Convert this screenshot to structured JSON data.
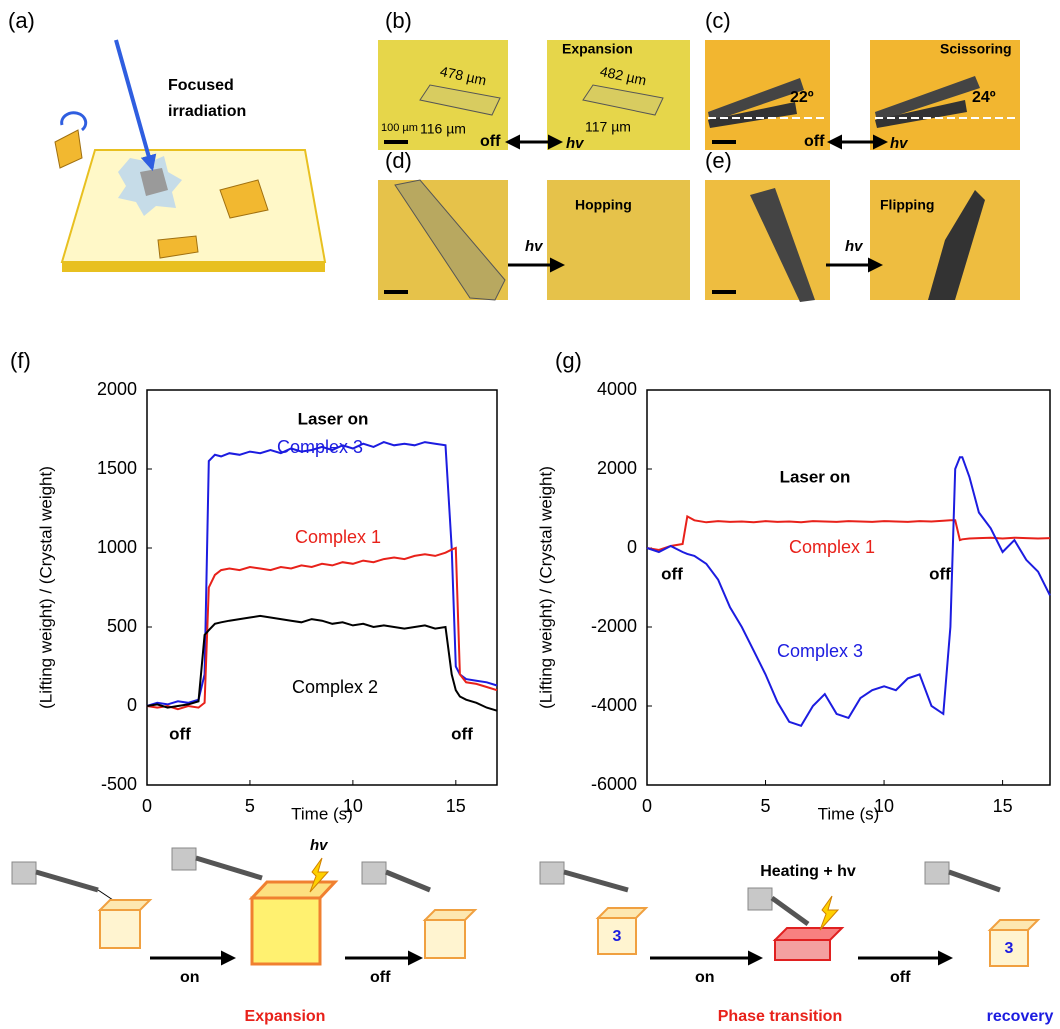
{
  "panels": {
    "a": {
      "label": "(a)",
      "caption_lines": [
        "Focused",
        "irradiation"
      ]
    },
    "b": {
      "label": "(b)",
      "length_off": "478 µm",
      "width_off": "116 µm",
      "scale_bar": "100 µm",
      "title": "Expansion",
      "length_on": "482 µm",
      "width_on": "117 µm",
      "off": "off",
      "hv": "hv"
    },
    "c": {
      "label": "(c)",
      "angle_off": "22º",
      "title": "Scissoring",
      "angle_on": "24º",
      "off": "off",
      "hv": "hv"
    },
    "d": {
      "label": "(d)",
      "title": "Hopping",
      "hv": "hv"
    },
    "e": {
      "label": "(e)",
      "title": "Flipping",
      "hv": "hv"
    }
  },
  "chart_data": [
    {
      "type": "line",
      "panel_label": "(f)",
      "x_label": "Time (s)",
      "y_label": "(Lifting weight) / (Crystal weight)",
      "xlim": [
        0,
        17
      ],
      "ylim": [
        -500,
        2000
      ],
      "xticks": [
        0,
        5,
        10,
        15
      ],
      "yticks": [
        -500,
        0,
        500,
        1000,
        1500,
        2000
      ],
      "grid": false,
      "annotations": [
        "Laser on",
        "off",
        "off"
      ],
      "x": [
        0,
        0.5,
        1,
        1.5,
        2,
        2.5,
        2.8,
        3,
        3.3,
        3.6,
        4,
        4.5,
        5,
        5.5,
        6,
        6.5,
        7,
        7.5,
        8,
        8.5,
        9,
        9.5,
        10,
        10.5,
        11,
        11.5,
        12,
        12.5,
        13,
        13.5,
        14,
        14.5,
        14.8,
        15,
        15.2,
        15.5,
        16,
        16.5,
        17
      ],
      "series": [
        {
          "name": "Complex 3",
          "color": "#1c1ce0",
          "values": [
            0,
            20,
            10,
            30,
            20,
            40,
            200,
            1550,
            1590,
            1580,
            1600,
            1590,
            1610,
            1600,
            1620,
            1600,
            1630,
            1610,
            1620,
            1640,
            1620,
            1650,
            1630,
            1660,
            1640,
            1670,
            1650,
            1660,
            1650,
            1670,
            1660,
            1650,
            1000,
            250,
            200,
            170,
            160,
            150,
            130
          ]
        },
        {
          "name": "Complex 1",
          "color": "#e8211a",
          "values": [
            0,
            -10,
            0,
            -20,
            0,
            -10,
            20,
            750,
            830,
            860,
            870,
            860,
            880,
            870,
            860,
            880,
            870,
            890,
            880,
            900,
            890,
            910,
            900,
            920,
            910,
            930,
            940,
            930,
            950,
            960,
            950,
            970,
            990,
            1000,
            200,
            150,
            140,
            120,
            100
          ]
        },
        {
          "name": "Complex 2",
          "color": "#000000",
          "values": [
            0,
            10,
            -10,
            0,
            10,
            30,
            450,
            480,
            520,
            530,
            540,
            550,
            560,
            570,
            560,
            550,
            540,
            530,
            550,
            540,
            520,
            530,
            510,
            520,
            500,
            510,
            500,
            490,
            500,
            510,
            490,
            500,
            200,
            100,
            60,
            40,
            20,
            -10,
            -30
          ]
        }
      ]
    },
    {
      "type": "line",
      "panel_label": "(g)",
      "x_label": "Time (s)",
      "y_label": "(Lifting weight) / (Crystal weight)",
      "xlim": [
        0,
        17
      ],
      "ylim": [
        -6000,
        4000
      ],
      "xticks": [
        0,
        5,
        10,
        15
      ],
      "yticks": [
        -6000,
        -4000,
        -2000,
        0,
        2000,
        4000
      ],
      "grid": false,
      "annotations": [
        "Laser on",
        "off",
        "off"
      ],
      "x": [
        0,
        0.5,
        1,
        1.5,
        1.7,
        2,
        2.5,
        3,
        3.5,
        4,
        4.5,
        5,
        5.5,
        6,
        6.5,
        7,
        7.5,
        8,
        8.5,
        9,
        9.5,
        10,
        10.5,
        11,
        11.5,
        12,
        12.5,
        12.8,
        13,
        13.2,
        13.3,
        13.6,
        14,
        14.5,
        15,
        15.5,
        16,
        16.5,
        17
      ],
      "series": [
        {
          "name": "Complex 1",
          "color": "#e8211a",
          "values": [
            0,
            -50,
            50,
            100,
            800,
            700,
            650,
            680,
            660,
            670,
            650,
            680,
            660,
            670,
            650,
            680,
            670,
            660,
            680,
            670,
            660,
            680,
            670,
            660,
            680,
            670,
            690,
            700,
            700,
            200,
            220,
            240,
            250,
            260,
            240,
            260,
            250,
            240,
            250
          ]
        },
        {
          "name": "Complex 3",
          "color": "#1c1ce0",
          "values": [
            0,
            -100,
            50,
            -100,
            -150,
            -200,
            -400,
            -800,
            -1500,
            -2000,
            -2600,
            -3200,
            -3900,
            -4400,
            -4500,
            -4000,
            -3700,
            -4200,
            -4300,
            -3800,
            -3600,
            -3500,
            -3600,
            -3300,
            -3200,
            -4000,
            -4200,
            -2000,
            2000,
            2300,
            2300,
            1800,
            900,
            500,
            -100,
            200,
            -300,
            -600,
            -1200
          ]
        }
      ]
    }
  ],
  "schemes": [
    {
      "hv": "hv",
      "on": "on",
      "off": "off",
      "caption": "Expansion"
    },
    {
      "condition": "Heating + hv",
      "complex_before": "3",
      "on": "on",
      "off": "off",
      "caption": "Phase transition",
      "complex_after": "3",
      "caption_after": "recovery"
    }
  ]
}
